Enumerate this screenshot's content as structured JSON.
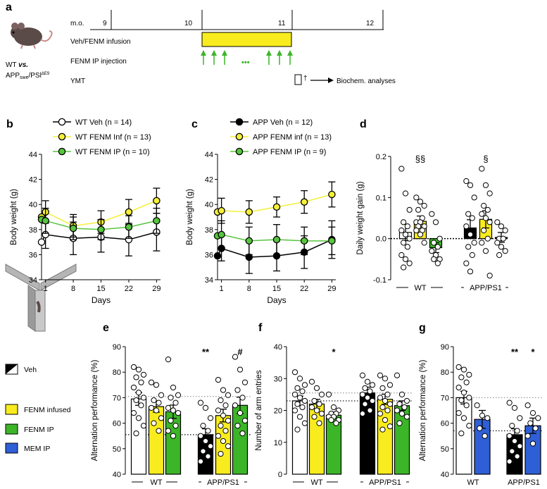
{
  "colors": {
    "black": "#000000",
    "white": "#ffffff",
    "yellow": "#f8f01e",
    "yellow_marker": "#f5ef3a",
    "green": "#3cb528",
    "green_marker": "#58c43f",
    "blue": "#2f5fd6",
    "ref_line": "#999999",
    "inf_bar": "#f9ec1e"
  },
  "panel_a": {
    "letter": "a",
    "mouse_label_1": "WT",
    "mouse_label_vs": "vs.",
    "mouse_label_2": "APP",
    "mouse_label_2_sub": "swe",
    "mouse_label_3": "/PSl",
    "mouse_label_3_sup": "ΔE9",
    "timeline_label": "m.o.",
    "months": [
      "9",
      "10",
      "11",
      "12"
    ],
    "rows": [
      "Veh/FENM infusion",
      "FENM IP injection",
      "YMT"
    ],
    "dagger": "†",
    "dots": "•••",
    "biochem": "Biochem. analyses"
  },
  "chart_data": [
    {
      "panel": "b",
      "type": "line",
      "title": "",
      "xlabel": "Days",
      "ylabel": "Body weight (g)",
      "x": [
        1,
        8,
        15,
        22,
        29
      ],
      "xlim": [
        0,
        30
      ],
      "ylim": [
        34,
        44
      ],
      "xticks": [
        "1",
        "8",
        "15",
        "22",
        "29"
      ],
      "yticks": [
        "34",
        "36",
        "38",
        "40",
        "42",
        "44"
      ],
      "series": [
        {
          "name": "WT Veh (n = 14)",
          "values": [
            37.6,
            37.3,
            37.4,
            37.2,
            37.8
          ],
          "err": [
            1.1,
            1.3,
            1.2,
            1.3,
            1.5
          ],
          "start": {
            "x": 0,
            "y": 37.0
          }
        },
        {
          "name": "WT FENM Inf (n = 13)",
          "values": [
            39.4,
            38.3,
            38.6,
            39.4,
            40.3
          ],
          "err": [
            0.9,
            0.9,
            0.9,
            1.0,
            1.0
          ],
          "start": {
            "x": 0,
            "y": 39.0
          }
        },
        {
          "name": "WT FENM IP (n = 10)",
          "values": [
            38.7,
            38.1,
            38.0,
            38.2,
            38.7
          ],
          "err": [
            1.0,
            0.9,
            0.8,
            0.9,
            1.0
          ],
          "start": {
            "x": 0,
            "y": 38.8
          }
        }
      ]
    },
    {
      "panel": "c",
      "type": "line",
      "title": "",
      "xlabel": "Days",
      "ylabel": "Body weight (g)",
      "x": [
        1,
        8,
        15,
        22,
        29
      ],
      "xlim": [
        0,
        30
      ],
      "ylim": [
        34,
        44
      ],
      "xticks": [
        "1",
        "8",
        "15",
        "22",
        "29"
      ],
      "yticks": [
        "34",
        "36",
        "38",
        "40",
        "42",
        "44"
      ],
      "series": [
        {
          "name": "APP Veh (n = 12)",
          "values": [
            36.5,
            35.8,
            35.9,
            36.2,
            37.2
          ],
          "err": [
            1.0,
            1.3,
            1.2,
            1.3,
            1.5
          ],
          "start": {
            "x": 0,
            "y": 35.9
          }
        },
        {
          "name": "APP FENM inf (n = 13)",
          "values": [
            39.5,
            39.4,
            39.8,
            40.2,
            40.8
          ],
          "err": [
            1.0,
            0.9,
            0.8,
            0.9,
            1.0
          ],
          "start": {
            "x": 0,
            "y": 39.4
          }
        },
        {
          "name": "APP FENM IP (n = 9)",
          "values": [
            37.6,
            37.1,
            37.2,
            37.1,
            37.1
          ],
          "err": [
            1.1,
            1.1,
            1.2,
            1.1,
            1.1
          ],
          "start": {
            "x": 0,
            "y": 37.5
          }
        }
      ]
    },
    {
      "panel": "d",
      "type": "bar",
      "title": "",
      "xlabel": "",
      "ylabel": "Daily weight gain (g)",
      "ylim": [
        -0.1,
        0.2
      ],
      "yticks": [
        "-0.1",
        "0.0",
        "0.1",
        "0.2"
      ],
      "group_labels": [
        "WT",
        "APP/PS1"
      ],
      "annotations": [
        "§§",
        "§"
      ],
      "bars": [
        {
          "group": "WT",
          "name": "Veh",
          "value": 0.015,
          "err": 0.02,
          "points": [
            0.17,
            0.11,
            0.07,
            0.04,
            0.03,
            0.02,
            0.01,
            0.0,
            -0.01,
            -0.02,
            -0.04,
            -0.05,
            -0.06,
            -0.07
          ]
        },
        {
          "group": "WT",
          "name": "FENM infused",
          "value": 0.042,
          "err": 0.013,
          "points": [
            0.1,
            0.09,
            0.08,
            0.07,
            0.05,
            0.04,
            0.04,
            0.03,
            0.03,
            0.02,
            0.02,
            0.01,
            -0.01
          ]
        },
        {
          "group": "WT",
          "name": "FENM IP",
          "value": -0.022,
          "err": 0.012,
          "points": [
            0.06,
            0.04,
            0.0,
            -0.01,
            -0.02,
            -0.03,
            -0.04,
            -0.05,
            -0.05,
            -0.06
          ]
        },
        {
          "group": "APP/PS1",
          "name": "Veh",
          "value": 0.026,
          "err": 0.02,
          "points": [
            0.14,
            0.13,
            0.1,
            0.06,
            0.05,
            0.03,
            0.01,
            -0.01,
            -0.02,
            -0.04,
            -0.06,
            -0.08
          ]
        },
        {
          "group": "APP/PS1",
          "name": "FENM infused",
          "value": 0.047,
          "err": 0.021,
          "points": [
            0.17,
            0.13,
            0.11,
            0.08,
            0.07,
            0.06,
            0.05,
            0.04,
            0.02,
            0.0,
            -0.01,
            -0.03,
            -0.09
          ]
        },
        {
          "group": "APP/PS1",
          "name": "FENM IP",
          "value": 0.003,
          "err": 0.012,
          "points": [
            0.04,
            0.03,
            0.02,
            0.0,
            0.0,
            -0.01,
            -0.02,
            -0.03,
            -0.04
          ]
        }
      ]
    },
    {
      "panel": "e",
      "type": "bar",
      "title": "",
      "xlabel": "",
      "ylabel": "Alternation performance (%)",
      "ylim": [
        40,
        90
      ],
      "yticks": [
        "40",
        "50",
        "60",
        "70",
        "80",
        "90"
      ],
      "ref_lines": [
        70.5,
        55.5
      ],
      "group_labels": [
        "WT",
        "APP/PS1"
      ],
      "bars": [
        {
          "group": "WT",
          "name": "Veh",
          "value": 69.5,
          "err": 2.5,
          "annotation": "",
          "points": [
            82,
            81,
            79,
            78,
            76,
            74,
            72,
            70,
            69,
            67,
            64,
            62,
            59,
            56
          ]
        },
        {
          "group": "WT",
          "name": "FENM infused",
          "value": 66.5,
          "err": 2.2,
          "annotation": "",
          "points": [
            76,
            75,
            71,
            69,
            68,
            66,
            65,
            62,
            60,
            57
          ]
        },
        {
          "group": "WT",
          "name": "FENM IP",
          "value": 64.5,
          "err": 2.6,
          "annotation": "",
          "points": [
            85,
            74,
            71,
            70,
            68,
            66,
            65,
            64,
            61,
            59,
            57,
            55
          ]
        },
        {
          "group": "APP/PS1",
          "name": "Veh",
          "value": 55.5,
          "err": 2.3,
          "annotation": "**",
          "points": [
            68,
            66,
            62,
            59,
            57,
            55,
            53,
            51,
            49,
            47,
            45
          ]
        },
        {
          "group": "APP/PS1",
          "name": "FENM infused",
          "value": 63,
          "err": 2.5,
          "annotation": "",
          "points": [
            77,
            73,
            71,
            69,
            67,
            65,
            63,
            61,
            59,
            57,
            55,
            53,
            51,
            48
          ]
        },
        {
          "group": "APP/PS1",
          "name": "FENM IP",
          "value": 67,
          "err": 3.2,
          "annotation": "#",
          "points": [
            86,
            81,
            76,
            73,
            70,
            67,
            64,
            61,
            59,
            56
          ]
        }
      ]
    },
    {
      "panel": "f",
      "type": "bar",
      "title": "",
      "xlabel": "",
      "ylabel": "Number of arm entries",
      "ylim": [
        0,
        40
      ],
      "yticks": [
        "0",
        "10",
        "20",
        "30",
        "40"
      ],
      "ref_lines": [
        25.5,
        23
      ],
      "group_labels": [
        "WT",
        "APP/PS1"
      ],
      "bars": [
        {
          "group": "WT",
          "name": "Veh",
          "value": 23,
          "err": 1.5,
          "annotation": "",
          "points": [
            32,
            30,
            28,
            27,
            26,
            25,
            24,
            23,
            22,
            21,
            20,
            18,
            16,
            14
          ]
        },
        {
          "group": "WT",
          "name": "FENM infused",
          "value": 22,
          "err": 1.5,
          "annotation": "",
          "points": [
            29,
            27,
            25,
            23,
            22,
            21,
            20,
            19,
            18,
            16
          ]
        },
        {
          "group": "WT",
          "name": "FENM IP",
          "value": 18.5,
          "err": 1.0,
          "annotation": "*",
          "points": [
            25,
            21,
            20,
            19,
            19,
            18,
            18,
            17,
            17,
            16
          ]
        },
        {
          "group": "APP/PS1",
          "name": "Veh",
          "value": 25.5,
          "err": 1.8,
          "annotation": "",
          "points": [
            31,
            29,
            28,
            27,
            26,
            25,
            24,
            23,
            22,
            20,
            19
          ]
        },
        {
          "group": "APP/PS1",
          "name": "FENM infused",
          "value": 23.5,
          "err": 1.6,
          "annotation": "",
          "points": [
            31,
            30,
            28,
            27,
            25,
            24,
            23,
            22,
            21,
            20,
            19,
            17,
            15,
            14
          ]
        },
        {
          "group": "APP/PS1",
          "name": "FENM IP",
          "value": 21.5,
          "err": 1.5,
          "annotation": "",
          "points": [
            31,
            25,
            23,
            22,
            21,
            20,
            19,
            18,
            16
          ]
        }
      ]
    },
    {
      "panel": "g",
      "type": "bar",
      "title": "",
      "xlabel": "",
      "ylabel": "Alternation performance (%)",
      "ylim": [
        40,
        90
      ],
      "yticks": [
        "40",
        "50",
        "60",
        "70",
        "80",
        "90"
      ],
      "ref_lines": [
        70,
        57
      ],
      "group_labels": [
        "WT",
        "APP/PS1"
      ],
      "bars": [
        {
          "group": "WT",
          "name": "Veh",
          "value": 70,
          "err": 2.5,
          "annotation": "",
          "points": [
            82,
            81,
            79,
            78,
            76,
            74,
            72,
            70,
            69,
            67,
            64,
            62,
            59,
            56
          ]
        },
        {
          "group": "WT",
          "name": "MEM IP",
          "value": 61.5,
          "err": 3.5,
          "annotation": "",
          "points": [
            67,
            63,
            62,
            58,
            55
          ]
        },
        {
          "group": "APP/PS1",
          "name": "Veh",
          "value": 55.5,
          "err": 2.3,
          "annotation": "**",
          "points": [
            68,
            66,
            62,
            59,
            57,
            55,
            53,
            51,
            49,
            47,
            45
          ]
        },
        {
          "group": "APP/PS1",
          "name": "MEM IP",
          "value": 59,
          "err": 3.0,
          "annotation": "*",
          "points": [
            67,
            64,
            62,
            60,
            58,
            55,
            52
          ]
        }
      ]
    }
  ],
  "legend": {
    "items": [
      {
        "label": "Veh",
        "swatch": "veh"
      },
      {
        "label": "FENM infused",
        "swatch": "yellow"
      },
      {
        "label": "FENM IP",
        "swatch": "green"
      },
      {
        "label": "MEM IP",
        "swatch": "blue"
      }
    ]
  },
  "panel_letters": [
    "b",
    "c",
    "d",
    "e",
    "f",
    "g"
  ]
}
